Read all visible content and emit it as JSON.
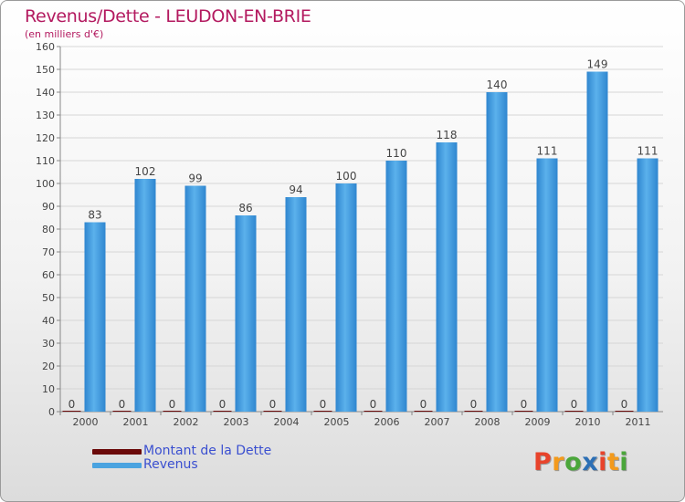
{
  "chart_data": {
    "type": "bar",
    "title": "Revenus/Dette - LEUDON-EN-BRIE",
    "subtitle": "(en milliers d'€)",
    "categories": [
      "2000",
      "2001",
      "2002",
      "2003",
      "2004",
      "2005",
      "2006",
      "2007",
      "2008",
      "2009",
      "2010",
      "2011"
    ],
    "series": [
      {
        "name": "Montant de la Dette",
        "color": "#6b0a0a",
        "values": [
          0,
          0,
          0,
          0,
          0,
          0,
          0,
          0,
          0,
          0,
          0,
          0
        ]
      },
      {
        "name": "Revenus",
        "color": "#4aa3e0",
        "values": [
          83,
          102,
          99,
          86,
          94,
          100,
          110,
          118,
          140,
          111,
          149,
          111
        ]
      }
    ],
    "ylim": [
      0,
      160
    ],
    "yticks": [
      0,
      10,
      20,
      30,
      40,
      50,
      60,
      70,
      80,
      90,
      100,
      110,
      120,
      130,
      140,
      150,
      160
    ],
    "grid": true,
    "legend": "bottom-left"
  },
  "brand": {
    "letters": [
      "P",
      "r",
      "o",
      "x",
      "i",
      "t",
      "i"
    ],
    "colors": [
      "#e8432b",
      "#f39a1c",
      "#4aa63a",
      "#2c6fb5",
      "#e8432b",
      "#f39a1c",
      "#4aa63a"
    ]
  }
}
